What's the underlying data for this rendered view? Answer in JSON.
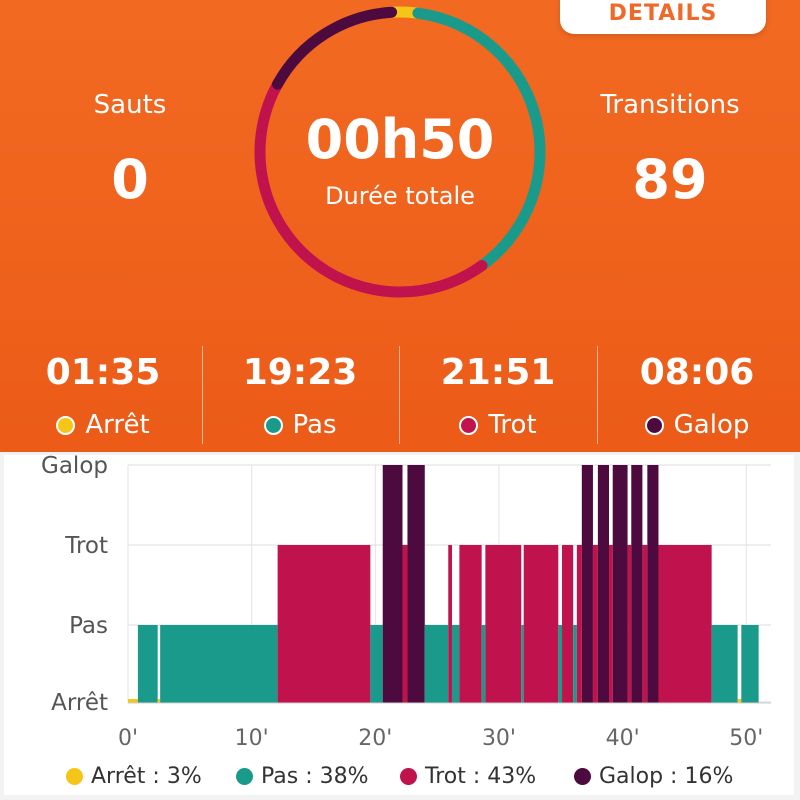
{
  "header": {
    "details_label": "DETAILS",
    "total_time": "00h50",
    "total_label": "Durée totale",
    "left_stat": {
      "label": "Sauts",
      "value": "0"
    },
    "right_stat": {
      "label": "Transitions",
      "value": "89"
    }
  },
  "gaits": [
    {
      "time": "01:35",
      "name": "Arrêt",
      "color": "#f5c518"
    },
    {
      "time": "19:23",
      "name": "Pas",
      "color": "#1a9a8a"
    },
    {
      "time": "21:51",
      "name": "Trot",
      "color": "#c0124d"
    },
    {
      "time": "08:06",
      "name": "Galop",
      "color": "#4d0a3e"
    }
  ],
  "ring": {
    "segments": [
      {
        "gait": "Arrêt",
        "fraction": 0.03
      },
      {
        "gait": "Pas",
        "fraction": 0.38
      },
      {
        "gait": "Trot",
        "fraction": 0.43
      },
      {
        "gait": "Galop",
        "fraction": 0.16
      }
    ]
  },
  "legend": [
    {
      "label": "Arrêt : 3%",
      "color": "#f5c518"
    },
    {
      "label": "Pas : 38%",
      "color": "#1a9a8a"
    },
    {
      "label": "Trot : 43%",
      "color": "#c0124d"
    },
    {
      "label": "Galop : 16%",
      "color": "#4d0a3e"
    }
  ],
  "chart_data": {
    "type": "area",
    "x_unit": "minutes",
    "xlim": [
      0,
      52
    ],
    "x_ticks": [
      "0'",
      "10'",
      "20'",
      "30'",
      "40'",
      "50'"
    ],
    "x_tick_values": [
      0,
      10,
      20,
      30,
      40,
      50
    ],
    "y_levels": [
      "Arrêt",
      "Pas",
      "Trot",
      "Galop"
    ],
    "grid": true,
    "colors": {
      "Arrêt": "#f5c518",
      "Pas": "#1a9a8a",
      "Trot": "#c0124d",
      "Galop": "#4d0a3e"
    },
    "segments": [
      {
        "start": 0.0,
        "end": 0.8,
        "gait": "Arrêt"
      },
      {
        "start": 0.8,
        "end": 2.4,
        "gait": "Pas"
      },
      {
        "start": 2.4,
        "end": 2.6,
        "gait": "Arrêt"
      },
      {
        "start": 2.6,
        "end": 12.1,
        "gait": "Pas"
      },
      {
        "start": 12.1,
        "end": 19.6,
        "gait": "Trot"
      },
      {
        "start": 19.6,
        "end": 20.6,
        "gait": "Pas"
      },
      {
        "start": 20.6,
        "end": 22.2,
        "gait": "Galop"
      },
      {
        "start": 22.2,
        "end": 22.6,
        "gait": "Trot"
      },
      {
        "start": 22.6,
        "end": 24.0,
        "gait": "Galop"
      },
      {
        "start": 24.0,
        "end": 25.9,
        "gait": "Pas"
      },
      {
        "start": 25.9,
        "end": 26.2,
        "gait": "Trot"
      },
      {
        "start": 26.2,
        "end": 26.8,
        "gait": "Pas"
      },
      {
        "start": 26.8,
        "end": 28.6,
        "gait": "Trot"
      },
      {
        "start": 28.6,
        "end": 28.9,
        "gait": "Pas"
      },
      {
        "start": 28.9,
        "end": 31.8,
        "gait": "Trot"
      },
      {
        "start": 31.8,
        "end": 32.0,
        "gait": "Pas"
      },
      {
        "start": 32.0,
        "end": 34.8,
        "gait": "Trot"
      },
      {
        "start": 34.8,
        "end": 35.1,
        "gait": "Pas"
      },
      {
        "start": 35.1,
        "end": 36.0,
        "gait": "Trot"
      },
      {
        "start": 36.0,
        "end": 36.3,
        "gait": "Pas"
      },
      {
        "start": 36.3,
        "end": 36.7,
        "gait": "Trot"
      },
      {
        "start": 36.7,
        "end": 37.6,
        "gait": "Galop"
      },
      {
        "start": 37.6,
        "end": 38.0,
        "gait": "Trot"
      },
      {
        "start": 38.0,
        "end": 38.9,
        "gait": "Galop"
      },
      {
        "start": 38.9,
        "end": 39.2,
        "gait": "Trot"
      },
      {
        "start": 39.2,
        "end": 40.4,
        "gait": "Galop"
      },
      {
        "start": 40.4,
        "end": 40.7,
        "gait": "Trot"
      },
      {
        "start": 40.7,
        "end": 41.6,
        "gait": "Galop"
      },
      {
        "start": 41.6,
        "end": 42.0,
        "gait": "Trot"
      },
      {
        "start": 42.0,
        "end": 42.9,
        "gait": "Galop"
      },
      {
        "start": 42.9,
        "end": 47.2,
        "gait": "Trot"
      },
      {
        "start": 47.2,
        "end": 49.3,
        "gait": "Pas"
      },
      {
        "start": 49.3,
        "end": 49.6,
        "gait": "Arrêt"
      },
      {
        "start": 49.6,
        "end": 51.0,
        "gait": "Pas"
      }
    ]
  }
}
